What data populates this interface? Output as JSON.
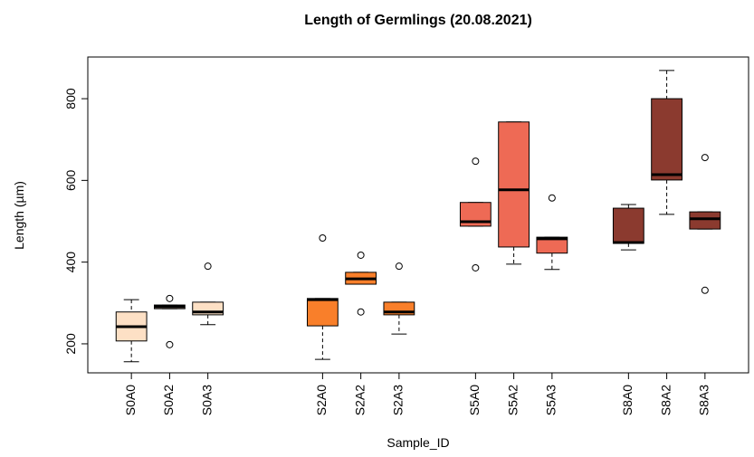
{
  "chart_data": {
    "type": "box",
    "title": "Length of Germlings (20.08.2021)",
    "x_label": "Sample_ID",
    "y_label": "Length (µm)",
    "categories": [
      "S0A0",
      "S0A2",
      "S0A3",
      null,
      null,
      "S2A0",
      "S2A2",
      "S2A3",
      null,
      "S5A0",
      "S5A2",
      "S5A3",
      null,
      "S8A0",
      "S8A2",
      "S8A3"
    ],
    "boxes": [
      {
        "whisker_low": 156,
        "q1": 207,
        "median": 242,
        "q3": 278,
        "whisker_high": 308,
        "outliers": [],
        "color": "#fde0c5"
      },
      {
        "whisker_low": 286,
        "q1": 286,
        "median": 291,
        "q3": 295,
        "whisker_high": 295,
        "outliers": [
          311,
          198
        ],
        "color": "#fde0c5"
      },
      {
        "whisker_low": 247,
        "q1": 271,
        "median": 278,
        "q3": 302,
        "whisker_high": 302,
        "outliers": [
          390
        ],
        "color": "#fde0c5"
      },
      null,
      null,
      {
        "whisker_low": 162,
        "q1": 244,
        "median": 308,
        "q3": 311,
        "whisker_high": 311,
        "outliers": [
          459
        ],
        "color": "#f97f2a"
      },
      {
        "whisker_low": 346,
        "q1": 346,
        "median": 359,
        "q3": 375,
        "whisker_high": 375,
        "outliers": [
          417,
          278
        ],
        "color": "#f97f2a"
      },
      {
        "whisker_low": 224,
        "q1": 271,
        "median": 278,
        "q3": 302,
        "whisker_high": 302,
        "outliers": [
          390
        ],
        "color": "#f97f2a"
      },
      null,
      {
        "whisker_low": 488,
        "q1": 488,
        "median": 499,
        "q3": 546,
        "whisker_high": 546,
        "outliers": [
          647,
          386
        ],
        "color": "#ee6a55"
      },
      {
        "whisker_low": 395,
        "q1": 437,
        "median": 577,
        "q3": 743,
        "whisker_high": 743,
        "outliers": [],
        "color": "#ee6a55"
      },
      {
        "whisker_low": 382,
        "q1": 422,
        "median": 457,
        "q3": 461,
        "whisker_high": 461,
        "outliers": [
          557
        ],
        "color": "#ee6a55"
      },
      null,
      {
        "whisker_low": 430,
        "q1": 446,
        "median": 448,
        "q3": 532,
        "whisker_high": 541,
        "outliers": [],
        "color": "#8b3a2f"
      },
      {
        "whisker_low": 517,
        "q1": 601,
        "median": 614,
        "q3": 800,
        "whisker_high": 869,
        "outliers": [],
        "color": "#8b3a2f"
      },
      {
        "whisker_low": 481,
        "q1": 481,
        "median": 506,
        "q3": 523,
        "whisker_high": 523,
        "outliers": [
          656,
          331
        ],
        "color": "#8b3a2f"
      }
    ],
    "ylim": [
      129,
      902
    ],
    "yticks": [
      200,
      400,
      600,
      800
    ]
  }
}
